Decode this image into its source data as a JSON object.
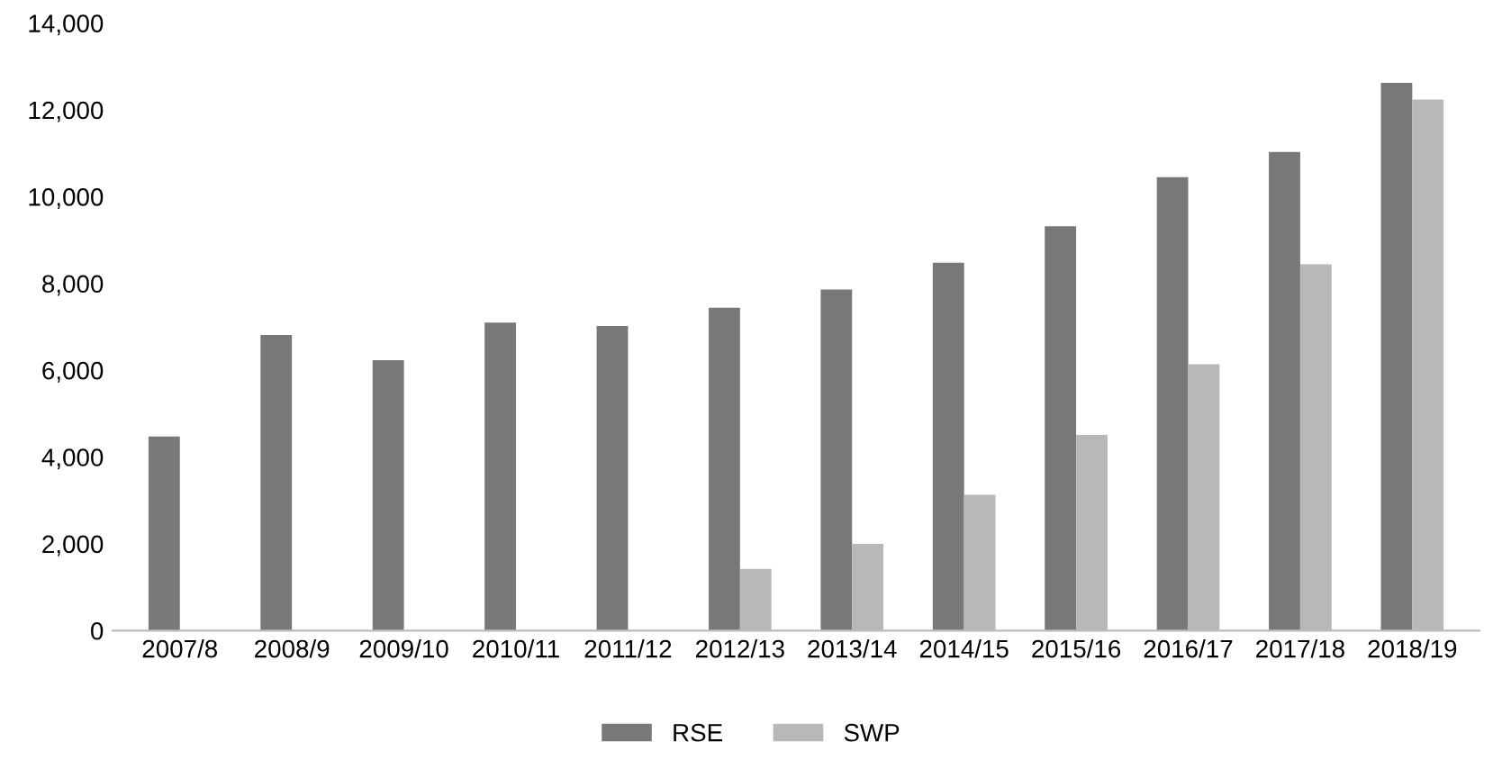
{
  "chart_data": {
    "type": "bar",
    "categories": [
      "2007/8",
      "2008/9",
      "2009/10",
      "2010/11",
      "2011/12",
      "2012/13",
      "2013/14",
      "2014/15",
      "2015/16",
      "2016/17",
      "2017/18",
      "2018/19"
    ],
    "series": [
      {
        "name": "RSE",
        "color": "#787878",
        "values": [
          4470,
          6810,
          6230,
          7100,
          7020,
          7440,
          7860,
          8480,
          9320,
          10450,
          11030,
          12620
        ]
      },
      {
        "name": "SWP",
        "color": "#b8b8b8",
        "values": [
          0,
          null,
          null,
          null,
          0,
          1420,
          2000,
          3130,
          4510,
          6140,
          8440,
          12240
        ]
      }
    ],
    "ylim": [
      0,
      14000
    ],
    "yticks": [
      {
        "value": 0,
        "label": "0"
      },
      {
        "value": 2000,
        "label": "2,000"
      },
      {
        "value": 4000,
        "label": "4,000"
      },
      {
        "value": 6000,
        "label": "6,000"
      },
      {
        "value": 8000,
        "label": "8,000"
      },
      {
        "value": 10000,
        "label": "10,000"
      },
      {
        "value": 12000,
        "label": "12,000"
      },
      {
        "value": 14000,
        "label": "14,000"
      }
    ],
    "grid": false,
    "legend": "bottom"
  }
}
